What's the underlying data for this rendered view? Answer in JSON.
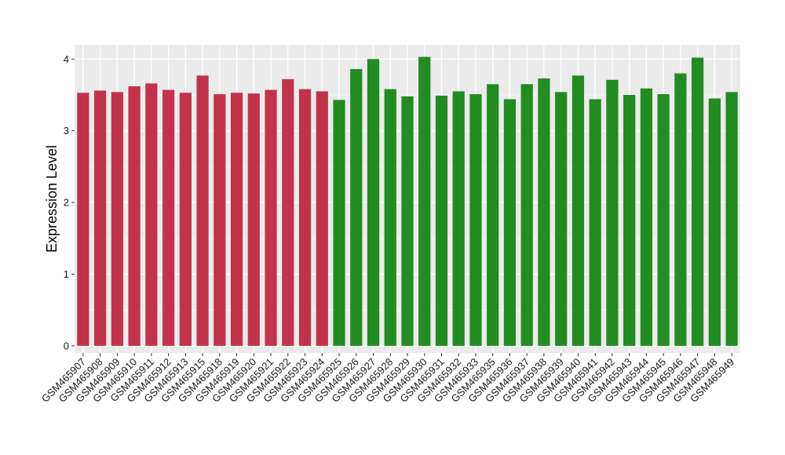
{
  "chart_data": {
    "type": "bar",
    "title": "",
    "xlabel": "",
    "ylabel": "Expression Level",
    "ylim": [
      -0.1,
      4.2
    ],
    "yticks": [
      0,
      1,
      2,
      3,
      4
    ],
    "grid": true,
    "legend": "none",
    "background_color": "#ebebeb",
    "grid_color": "#ffffff",
    "categories": [
      "GSM465907",
      "GSM465908",
      "GSM465909",
      "GSM465910",
      "GSM465911",
      "GSM465912",
      "GSM465913",
      "GSM465915",
      "GSM465918",
      "GSM465919",
      "GSM465920",
      "GSM465921",
      "GSM465922",
      "GSM465923",
      "GSM465924",
      "GSM465925",
      "GSM465926",
      "GSM465927",
      "GSM465928",
      "GSM465929",
      "GSM465930",
      "GSM465931",
      "GSM465932",
      "GSM465933",
      "GSM465935",
      "GSM465936",
      "GSM465937",
      "GSM465938",
      "GSM465939",
      "GSM465940",
      "GSM465941",
      "GSM465942",
      "GSM465943",
      "GSM465944",
      "GSM465945",
      "GSM465946",
      "GSM465947",
      "GSM465948",
      "GSM465949"
    ],
    "values": [
      3.53,
      3.56,
      3.54,
      3.62,
      3.66,
      3.57,
      3.53,
      3.77,
      3.51,
      3.53,
      3.52,
      3.57,
      3.72,
      3.58,
      3.55,
      3.43,
      3.86,
      4.0,
      3.58,
      3.48,
      4.03,
      3.49,
      3.55,
      3.51,
      3.65,
      3.44,
      3.65,
      3.73,
      3.54,
      3.77,
      3.44,
      3.71,
      3.5,
      3.59,
      3.51,
      3.8,
      4.02,
      3.45,
      3.54
    ],
    "bar_colors": [
      "#c1334b",
      "#c1334b",
      "#c1334b",
      "#c1334b",
      "#c1334b",
      "#c1334b",
      "#c1334b",
      "#c1334b",
      "#c1334b",
      "#c1334b",
      "#c1334b",
      "#c1334b",
      "#c1334b",
      "#c1334b",
      "#c1334b",
      "#228b22",
      "#228b22",
      "#228b22",
      "#228b22",
      "#228b22",
      "#228b22",
      "#228b22",
      "#228b22",
      "#228b22",
      "#228b22",
      "#228b22",
      "#228b22",
      "#228b22",
      "#228b22",
      "#228b22",
      "#228b22",
      "#228b22",
      "#228b22",
      "#228b22",
      "#228b22",
      "#228b22",
      "#228b22",
      "#228b22",
      "#228b22"
    ]
  }
}
